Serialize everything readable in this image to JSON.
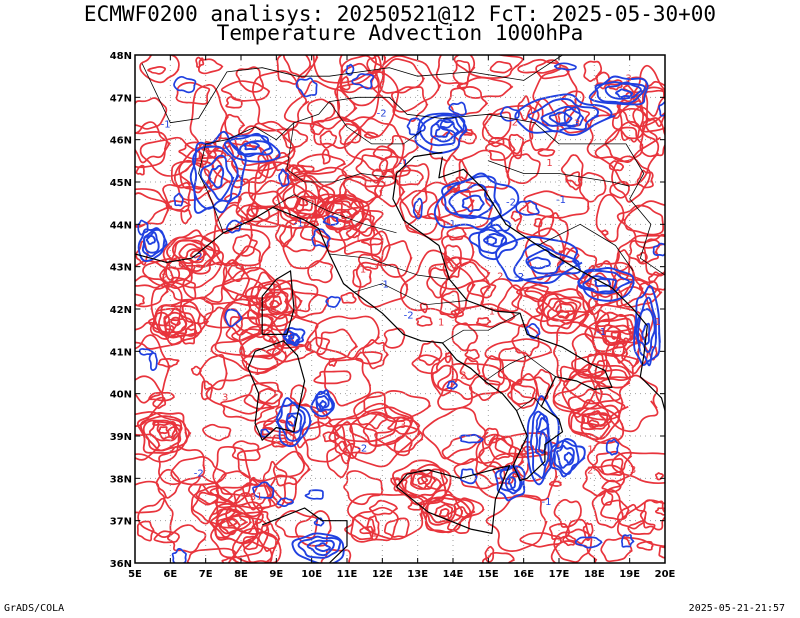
{
  "header": {
    "line1": "ECMWF0200 analisys: 20250521@12 FcT: 2025-05-30+00",
    "line2": "Temperature Advection 1000hPa"
  },
  "footer": {
    "left": "GrADS/COLA",
    "right": "2025-05-21-21:57"
  },
  "map": {
    "lon_range": [
      5,
      20
    ],
    "lat_range": [
      36,
      48
    ],
    "lon_labels": [
      "5E",
      "6E",
      "7E",
      "8E",
      "9E",
      "10E",
      "11E",
      "12E",
      "13E",
      "14E",
      "15E",
      "16E",
      "17E",
      "18E",
      "19E",
      "20E"
    ],
    "lat_labels": [
      "36N",
      "37N",
      "38N",
      "39N",
      "40N",
      "41N",
      "42N",
      "43N",
      "44N",
      "45N",
      "46N",
      "47N",
      "48N"
    ],
    "colors": {
      "warm_advection": "#e8343c",
      "cold_advection": "#2040e0",
      "coastline": "#000000",
      "gridline": "#a0a0a0"
    },
    "contour_labels": [
      "1",
      "2",
      "3",
      "-1",
      "-2"
    ]
  }
}
